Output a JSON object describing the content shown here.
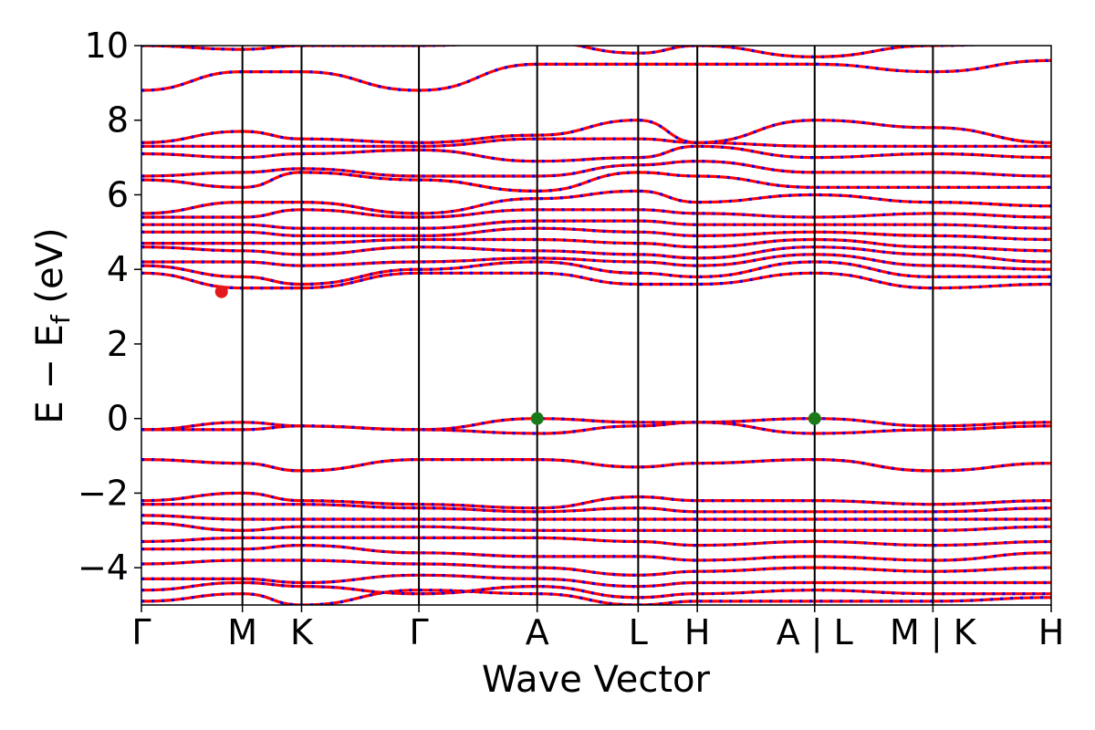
{
  "chart_data": {
    "type": "line",
    "xlabel": "Wave Vector",
    "ylabel": {
      "main": "E − E",
      "subscript": "f",
      "unit": " (eV)"
    },
    "ylim": [
      -5,
      10
    ],
    "yticks": [
      {
        "value": 10,
        "label": "10"
      },
      {
        "value": 8,
        "label": "8"
      },
      {
        "value": 6,
        "label": "6"
      },
      {
        "value": 4,
        "label": "4"
      },
      {
        "value": 2,
        "label": "2"
      },
      {
        "value": 0,
        "label": "0"
      },
      {
        "value": -2,
        "label": "−2"
      },
      {
        "value": -4,
        "label": "−4"
      }
    ],
    "kpath_positions": [
      0,
      0.111,
      0.176,
      0.305,
      0.435,
      0.546,
      0.611,
      0.74,
      0.87,
      1.0
    ],
    "xticks": [
      {
        "k": 0.0,
        "label": "Γ"
      },
      {
        "k": 0.111,
        "label": "M"
      },
      {
        "k": 0.176,
        "label": "K"
      },
      {
        "k": 0.305,
        "label": "Γ"
      },
      {
        "k": 0.435,
        "label": "A"
      },
      {
        "k": 0.546,
        "label": "L"
      },
      {
        "k": 0.611,
        "label": "H"
      },
      {
        "k": 0.74,
        "label": "A | L"
      },
      {
        "k": 0.87,
        "label": "M | K"
      },
      {
        "k": 1.0,
        "label": "H"
      }
    ],
    "bands_at_nodes": [
      [
        -4.9,
        -4.7,
        -5.0,
        -4.6,
        -4.7,
        -5.0,
        -4.9,
        -4.9,
        -4.9,
        -4.8
      ],
      [
        -4.6,
        -4.4,
        -4.5,
        -4.7,
        -4.5,
        -4.8,
        -4.7,
        -4.6,
        -4.7,
        -4.7
      ],
      [
        -4.3,
        -4.3,
        -4.4,
        -4.2,
        -4.3,
        -4.5,
        -4.4,
        -4.4,
        -4.4,
        -4.4
      ],
      [
        -3.9,
        -3.8,
        -3.8,
        -3.9,
        -4.0,
        -4.2,
        -4.1,
        -4.0,
        -4.1,
        -4.0
      ],
      [
        -3.5,
        -3.5,
        -3.4,
        -3.6,
        -3.7,
        -3.7,
        -3.8,
        -3.7,
        -3.8,
        -3.6
      ],
      [
        -3.3,
        -3.2,
        -3.2,
        -3.2,
        -3.2,
        -3.3,
        -3.4,
        -3.3,
        -3.4,
        -3.3
      ],
      [
        -2.8,
        -3.0,
        -2.9,
        -2.9,
        -3.0,
        -3.0,
        -3.0,
        -3.0,
        -3.0,
        -2.9
      ],
      [
        -2.6,
        -2.7,
        -2.7,
        -2.7,
        -2.7,
        -2.7,
        -2.7,
        -2.7,
        -2.7,
        -2.7
      ],
      [
        -2.3,
        -2.3,
        -2.3,
        -2.4,
        -2.5,
        -2.4,
        -2.5,
        -2.5,
        -2.5,
        -2.4
      ],
      [
        -2.2,
        -2.0,
        -2.2,
        -2.3,
        -2.4,
        -2.1,
        -2.2,
        -2.2,
        -2.3,
        -2.2
      ],
      [
        -1.1,
        -1.2,
        -1.4,
        -1.1,
        -1.1,
        -1.3,
        -1.2,
        -1.1,
        -1.4,
        -1.2
      ],
      [
        -0.3,
        -0.3,
        -0.2,
        -0.3,
        -0.4,
        -0.2,
        -0.1,
        -0.4,
        -0.3,
        -0.2
      ],
      [
        -0.3,
        -0.1,
        -0.2,
        -0.3,
        0.0,
        -0.1,
        -0.1,
        0.0,
        -0.2,
        -0.1
      ],
      [
        3.9,
        3.5,
        3.5,
        3.9,
        3.9,
        3.6,
        3.6,
        3.9,
        3.5,
        3.6
      ],
      [
        4.1,
        3.8,
        3.6,
        4.0,
        4.2,
        3.9,
        3.8,
        4.2,
        3.8,
        3.8
      ],
      [
        4.2,
        4.2,
        4.1,
        4.2,
        4.3,
        4.2,
        4.1,
        4.4,
        4.1,
        4.0
      ],
      [
        4.6,
        4.5,
        4.4,
        4.6,
        4.5,
        4.4,
        4.3,
        4.6,
        4.4,
        4.2
      ],
      [
        4.7,
        4.7,
        4.7,
        4.8,
        4.8,
        4.7,
        4.6,
        4.8,
        4.6,
        4.5
      ],
      [
        5.0,
        5.0,
        4.9,
        4.9,
        5.1,
        5.0,
        4.9,
        5.0,
        4.9,
        4.8
      ],
      [
        5.2,
        5.2,
        5.1,
        5.1,
        5.3,
        5.3,
        5.2,
        5.2,
        5.2,
        5.1
      ],
      [
        5.4,
        5.4,
        5.6,
        5.4,
        5.6,
        5.6,
        5.5,
        5.4,
        5.5,
        5.4
      ],
      [
        5.5,
        5.8,
        5.8,
        5.5,
        5.9,
        6.1,
        5.8,
        6.0,
        5.8,
        5.7
      ],
      [
        6.4,
        6.2,
        6.6,
        6.4,
        6.1,
        6.6,
        6.5,
        6.2,
        6.2,
        6.2
      ],
      [
        6.5,
        6.6,
        6.7,
        6.5,
        6.5,
        6.8,
        6.9,
        6.6,
        6.6,
        6.5
      ],
      [
        7.1,
        7.0,
        7.1,
        7.2,
        6.9,
        7.0,
        7.3,
        7.0,
        7.1,
        7.0
      ],
      [
        7.3,
        7.3,
        7.3,
        7.3,
        7.5,
        7.5,
        7.4,
        7.3,
        7.3,
        7.3
      ],
      [
        7.4,
        7.7,
        7.5,
        7.4,
        7.6,
        8.0,
        7.4,
        8.0,
        7.8,
        7.4
      ],
      [
        8.8,
        9.3,
        9.3,
        8.8,
        9.5,
        9.5,
        9.5,
        9.5,
        9.3,
        9.6
      ],
      [
        10.0,
        9.9,
        10.0,
        10.0,
        10.1,
        9.8,
        10.0,
        9.7,
        10.0,
        10.1
      ]
    ],
    "special_points": [
      {
        "k": 0.088,
        "energy": 3.4,
        "color": "#e31a1c"
      },
      {
        "k": 0.435,
        "energy": 0.0,
        "color": "#1a7a1a"
      },
      {
        "k": 0.74,
        "energy": 0.0,
        "color": "#1a7a1a"
      }
    ],
    "series_colors": {
      "primary": "#ff0000",
      "secondary": "#0000ff"
    },
    "grid": false
  }
}
